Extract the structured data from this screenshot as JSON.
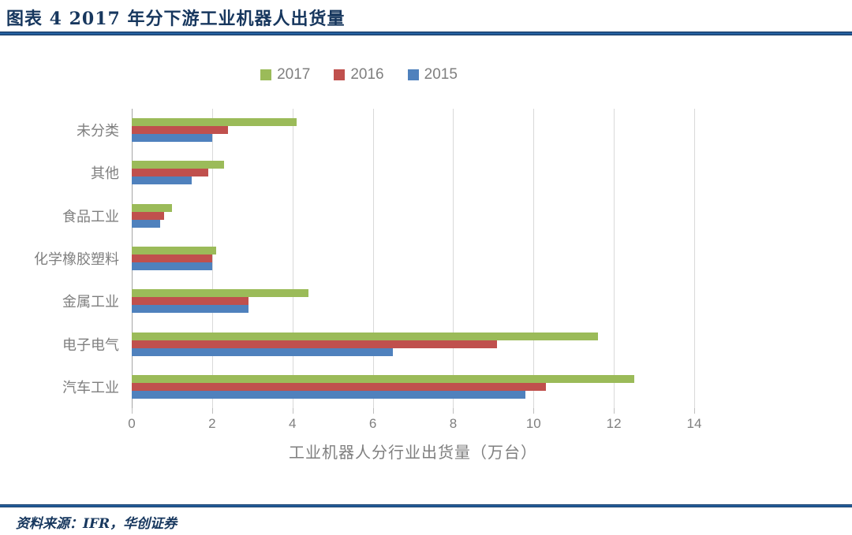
{
  "header": {
    "title": "图表 4  2017 年分下游工业机器人出货量",
    "accent_color": "#17375E"
  },
  "chart_data": {
    "type": "bar",
    "orientation": "horizontal",
    "title": "2017 年分下游工业机器人出货量",
    "xlabel": "工业机器人分行业出货量（万台）",
    "ylabel": "",
    "xlim": [
      0,
      14
    ],
    "xticks": [
      0,
      2,
      4,
      6,
      8,
      10,
      12,
      14
    ],
    "grid": true,
    "legend_position": "top",
    "categories": [
      "未分类",
      "其他",
      "食品工业",
      "化学橡胶塑料",
      "金属工业",
      "电子电气",
      "汽车工业"
    ],
    "series": [
      {
        "name": "2017",
        "color": "#9BBB59",
        "values": [
          4.1,
          2.3,
          1.0,
          2.1,
          4.4,
          11.6,
          12.5
        ]
      },
      {
        "name": "2016",
        "color": "#C0504D",
        "values": [
          2.4,
          1.9,
          0.8,
          2.0,
          2.9,
          9.1,
          10.3
        ]
      },
      {
        "name": "2015",
        "color": "#4F81BD",
        "values": [
          2.0,
          1.5,
          0.7,
          2.0,
          2.9,
          6.5,
          9.8
        ]
      }
    ],
    "colors": {
      "grid": "#D9D9D9",
      "axis": "#A6A6A6",
      "text": "#7F7F7F"
    }
  },
  "footer": {
    "source": "资料来源：IFR，华创证券"
  }
}
